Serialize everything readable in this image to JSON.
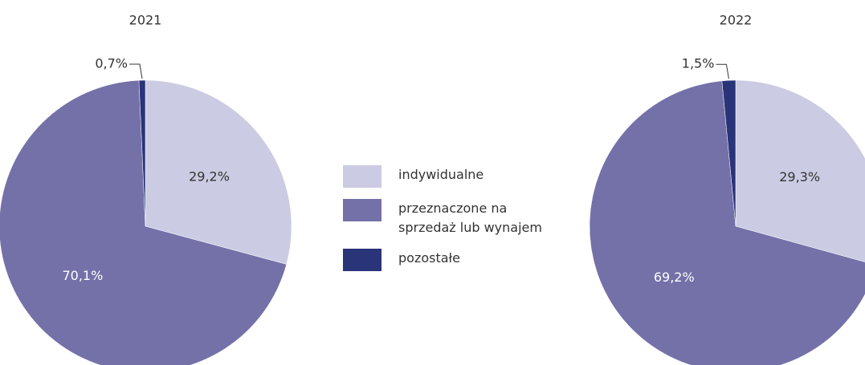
{
  "chart_data": [
    {
      "type": "pie",
      "title": "2021",
      "categories": [
        "indywidualne",
        "przeznaczone na sprzedaż lub wynajem",
        "pozostałe"
      ],
      "values": [
        29.2,
        70.1,
        0.7
      ],
      "value_labels": [
        "29,2%",
        "70,1%",
        "0,7%"
      ],
      "colors": [
        "#cbcbe3",
        "#7471a9",
        "#293479"
      ]
    },
    {
      "type": "pie",
      "title": "2022",
      "categories": [
        "indywidualne",
        "przeznaczone na sprzedaż lub wynajem",
        "pozostałe"
      ],
      "values": [
        29.3,
        69.2,
        1.5
      ],
      "value_labels": [
        "29,3%",
        "69,2%",
        "1,5%"
      ],
      "colors": [
        "#cbcbe3",
        "#7471a9",
        "#293479"
      ]
    }
  ]
}
